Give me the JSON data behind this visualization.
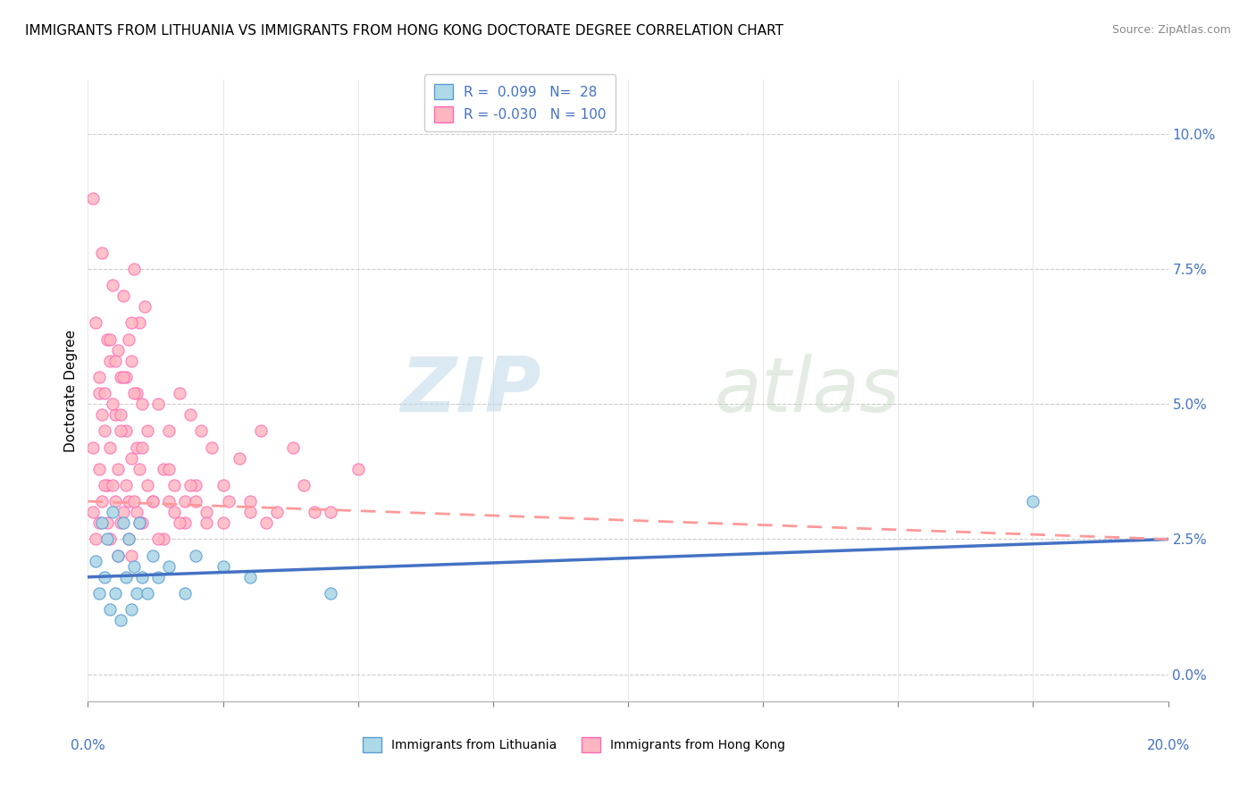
{
  "title": "IMMIGRANTS FROM LITHUANIA VS IMMIGRANTS FROM HONG KONG DOCTORATE DEGREE CORRELATION CHART",
  "source": "Source: ZipAtlas.com",
  "ylabel": "Doctorate Degree",
  "yticks_labels": [
    "0.0%",
    "2.5%",
    "5.0%",
    "7.5%",
    "10.0%"
  ],
  "yticks_vals": [
    0.0,
    2.5,
    5.0,
    7.5,
    10.0
  ],
  "xlim": [
    0.0,
    20.0
  ],
  "ylim": [
    -0.5,
    11.0
  ],
  "watermark_zip": "ZIP",
  "watermark_atlas": "atlas",
  "color_lithuania_fill": "#ADD8E6",
  "color_lithuania_edge": "#5B9BD5",
  "color_hong_kong_fill": "#FFB6C1",
  "color_hong_kong_edge": "#FF69B4",
  "color_line_lithuania": "#4472C4",
  "color_line_hong_kong": "#FF9999",
  "color_tick_label": "#4472C4",
  "legend_label_1": "R =  0.099   N=  28",
  "legend_label_2": "R = -0.030   N = 100",
  "bottom_label_1": "Immigrants from Lithuania",
  "bottom_label_2": "Immigrants from Hong Kong",
  "scatter_lithuania": [
    [
      0.15,
      2.1
    ],
    [
      0.2,
      1.5
    ],
    [
      0.25,
      2.8
    ],
    [
      0.3,
      1.8
    ],
    [
      0.35,
      2.5
    ],
    [
      0.4,
      1.2
    ],
    [
      0.45,
      3.0
    ],
    [
      0.5,
      1.5
    ],
    [
      0.55,
      2.2
    ],
    [
      0.6,
      1.0
    ],
    [
      0.65,
      2.8
    ],
    [
      0.7,
      1.8
    ],
    [
      0.75,
      2.5
    ],
    [
      0.8,
      1.2
    ],
    [
      0.85,
      2.0
    ],
    [
      0.9,
      1.5
    ],
    [
      0.95,
      2.8
    ],
    [
      1.0,
      1.8
    ],
    [
      1.1,
      1.5
    ],
    [
      1.2,
      2.2
    ],
    [
      1.3,
      1.8
    ],
    [
      1.5,
      2.0
    ],
    [
      1.8,
      1.5
    ],
    [
      2.0,
      2.2
    ],
    [
      2.5,
      2.0
    ],
    [
      3.0,
      1.8
    ],
    [
      4.5,
      1.5
    ],
    [
      17.5,
      3.2
    ]
  ],
  "scatter_hong_kong": [
    [
      0.1,
      8.8
    ],
    [
      0.15,
      6.5
    ],
    [
      0.2,
      5.2
    ],
    [
      0.25,
      7.8
    ],
    [
      0.3,
      4.5
    ],
    [
      0.35,
      6.2
    ],
    [
      0.4,
      5.8
    ],
    [
      0.45,
      7.2
    ],
    [
      0.5,
      4.8
    ],
    [
      0.55,
      6.0
    ],
    [
      0.6,
      5.5
    ],
    [
      0.65,
      7.0
    ],
    [
      0.7,
      4.5
    ],
    [
      0.75,
      6.2
    ],
    [
      0.8,
      5.8
    ],
    [
      0.85,
      7.5
    ],
    [
      0.9,
      4.2
    ],
    [
      0.95,
      6.5
    ],
    [
      1.0,
      5.0
    ],
    [
      1.05,
      6.8
    ],
    [
      0.2,
      3.8
    ],
    [
      0.3,
      5.2
    ],
    [
      0.4,
      4.2
    ],
    [
      0.5,
      5.8
    ],
    [
      0.6,
      4.5
    ],
    [
      0.7,
      5.5
    ],
    [
      0.8,
      4.0
    ],
    [
      0.9,
      5.2
    ],
    [
      0.25,
      4.8
    ],
    [
      0.35,
      3.5
    ],
    [
      0.45,
      5.0
    ],
    [
      0.55,
      3.8
    ],
    [
      0.65,
      5.5
    ],
    [
      0.75,
      3.2
    ],
    [
      0.85,
      5.2
    ],
    [
      0.95,
      3.8
    ],
    [
      1.1,
      4.5
    ],
    [
      1.2,
      3.2
    ],
    [
      1.3,
      5.0
    ],
    [
      1.4,
      3.8
    ],
    [
      1.5,
      4.5
    ],
    [
      1.6,
      3.5
    ],
    [
      1.7,
      5.2
    ],
    [
      1.8,
      3.2
    ],
    [
      1.9,
      4.8
    ],
    [
      2.0,
      3.5
    ],
    [
      2.1,
      4.5
    ],
    [
      2.2,
      3.0
    ],
    [
      2.3,
      4.2
    ],
    [
      2.5,
      3.5
    ],
    [
      2.8,
      4.0
    ],
    [
      3.0,
      3.2
    ],
    [
      3.2,
      4.5
    ],
    [
      3.5,
      3.0
    ],
    [
      3.8,
      4.2
    ],
    [
      4.0,
      3.5
    ],
    [
      4.5,
      3.0
    ],
    [
      5.0,
      3.8
    ],
    [
      0.1,
      3.0
    ],
    [
      0.2,
      2.8
    ],
    [
      0.3,
      3.5
    ],
    [
      0.4,
      2.5
    ],
    [
      0.5,
      3.2
    ],
    [
      0.6,
      2.8
    ],
    [
      0.7,
      3.5
    ],
    [
      0.8,
      2.2
    ],
    [
      0.9,
      3.0
    ],
    [
      1.0,
      2.8
    ],
    [
      1.2,
      3.2
    ],
    [
      1.4,
      2.5
    ],
    [
      1.6,
      3.0
    ],
    [
      1.8,
      2.8
    ],
    [
      2.0,
      3.2
    ],
    [
      2.5,
      2.8
    ],
    [
      3.0,
      3.0
    ],
    [
      0.15,
      2.5
    ],
    [
      0.25,
      3.2
    ],
    [
      0.35,
      2.8
    ],
    [
      0.45,
      3.5
    ],
    [
      0.55,
      2.2
    ],
    [
      0.65,
      3.0
    ],
    [
      0.75,
      2.5
    ],
    [
      0.85,
      3.2
    ],
    [
      0.95,
      2.8
    ],
    [
      1.1,
      3.5
    ],
    [
      1.3,
      2.5
    ],
    [
      1.5,
      3.2
    ],
    [
      1.7,
      2.8
    ],
    [
      1.9,
      3.5
    ],
    [
      2.2,
      2.8
    ],
    [
      2.6,
      3.2
    ],
    [
      3.3,
      2.8
    ],
    [
      4.2,
      3.0
    ],
    [
      0.1,
      4.2
    ],
    [
      0.2,
      5.5
    ],
    [
      0.4,
      6.2
    ],
    [
      0.6,
      4.8
    ],
    [
      0.8,
      6.5
    ],
    [
      1.0,
      4.2
    ],
    [
      1.5,
      3.8
    ]
  ],
  "line_lith_x0": 0.0,
  "line_lith_y0": 1.8,
  "line_lith_x1": 20.0,
  "line_lith_y1": 2.5,
  "line_hk_x0": 0.0,
  "line_hk_y0": 3.2,
  "line_hk_x1": 20.0,
  "line_hk_y1": 2.5,
  "title_fontsize": 11,
  "source_fontsize": 9,
  "tick_fontsize": 11,
  "label_fontsize": 11,
  "legend_fontsize": 11
}
